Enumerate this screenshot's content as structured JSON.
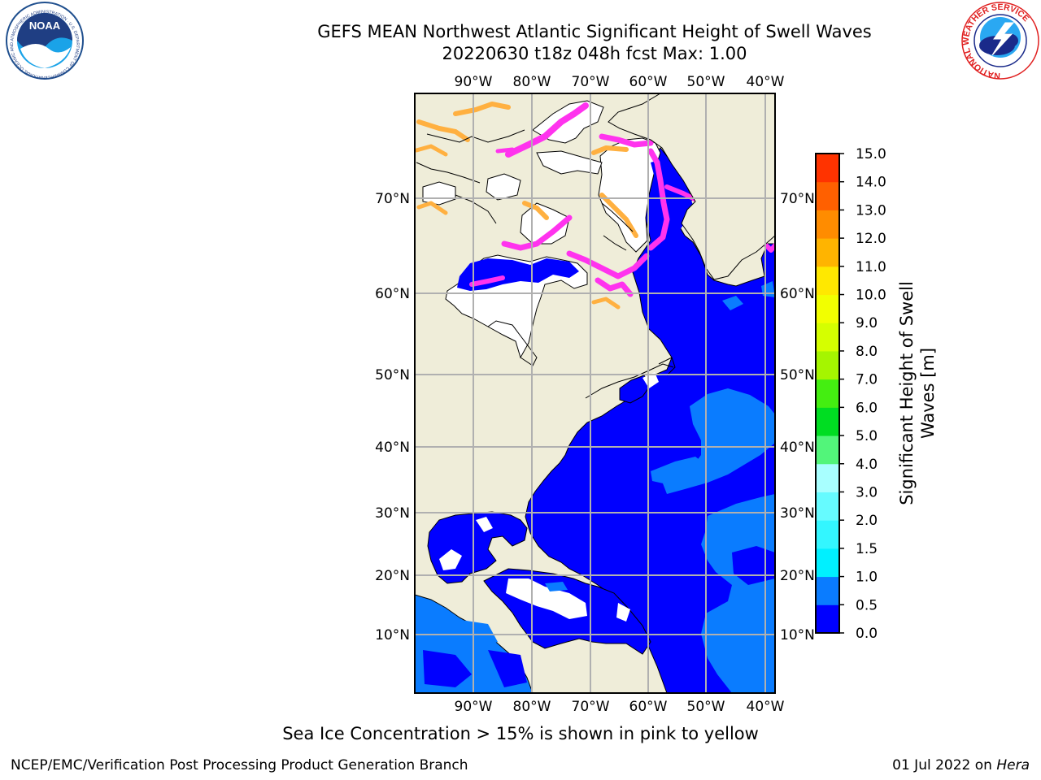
{
  "header": {
    "title_line1": "GEFS MEAN Northwest Atlantic Significant Height of Swell Waves",
    "title_line2": "20220630 t18z 048h fcst   Max: 1.00"
  },
  "logos": {
    "left": {
      "text": "NOAA",
      "ring_text": "NATIONAL OCEANIC AND ATMOSPHERIC ADMINISTRATION · U.S. DEPARTMENT OF COMMERCE",
      "icon": "noaa-logo-icon"
    },
    "right": {
      "ring_text": "NATIONAL WEATHER SERVICE",
      "icon": "nws-logo-icon"
    }
  },
  "map": {
    "lon_labels": [
      "90°W",
      "80°W",
      "70°W",
      "60°W",
      "50°W",
      "40°W"
    ],
    "lat_labels": [
      "70°N",
      "60°N",
      "50°N",
      "40°N",
      "30°N",
      "20°N",
      "10°N"
    ],
    "colors": {
      "land": "#efedd9",
      "ocean_low": "#0000ff",
      "ocean_mid": "#0a7cff",
      "ice_pink": "#ff33ee",
      "ice_orange": "#ffb040",
      "grid": "#b0b0b0"
    }
  },
  "colorbar": {
    "label_line1": "Significant Height of Swell",
    "label_line2": "Waves [m]",
    "ticks": [
      "0.0",
      "0.5",
      "1.0",
      "1.5",
      "2.0",
      "3.0",
      "4.0",
      "5.0",
      "6.0",
      "7.0",
      "8.0",
      "9.0",
      "10.0",
      "11.0",
      "12.0",
      "13.0",
      "14.0",
      "15.0"
    ],
    "colors": [
      "#0000ff",
      "#0a7cff",
      "#00f0ff",
      "#33f6ff",
      "#66fbff",
      "#a8ffff",
      "#52f57a",
      "#00dd22",
      "#44ee11",
      "#a5f500",
      "#d5ff00",
      "#f2ff00",
      "#ffe800",
      "#ffb400",
      "#ff8c00",
      "#ff6000",
      "#ff3300",
      "#ff0000"
    ]
  },
  "footer": {
    "caption": "Sea Ice Concentration > 15% is shown in pink to yellow",
    "left": "NCEP/EMC/Verification Post Processing Product Generation Branch",
    "right_date": "01 Jul 2022 on",
    "right_host": "Hera"
  }
}
